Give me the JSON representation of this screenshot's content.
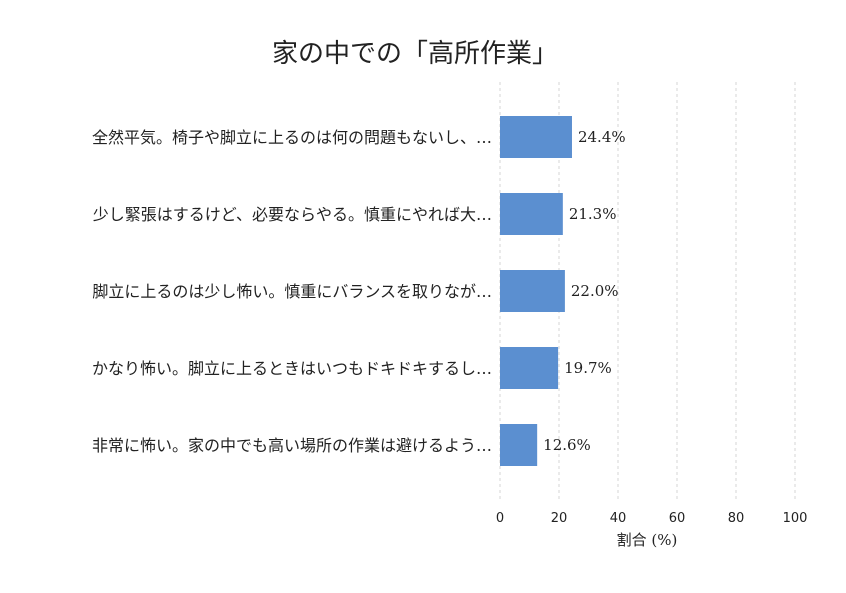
{
  "chart_data": {
    "type": "bar",
    "orientation": "horizontal",
    "title": "家の中での「高所作業」",
    "xlabel": "割合 (%)",
    "ylabel": "",
    "xlim": [
      0,
      100
    ],
    "xticks": [
      "0",
      "20",
      "40",
      "60",
      "80",
      "100"
    ],
    "grid": true,
    "bar_color": "#5b8fd0",
    "categories": [
      "全然平気。椅子や脚立に上るのは何の問題もないし、…",
      "少し緊張はするけど、必要ならやる。慎重にやれば大…",
      "脚立に上るのは少し怖い。慎重にバランスを取りなが…",
      "かなり怖い。脚立に上るときはいつもドキドキするし…",
      "非常に怖い。家の中でも高い場所の作業は避けるよう…"
    ],
    "values": [
      24.4,
      21.3,
      22.0,
      19.7,
      12.6
    ],
    "data_labels": [
      "24.4%",
      "21.3%",
      "22.0%",
      "19.7%",
      "12.6%"
    ]
  }
}
